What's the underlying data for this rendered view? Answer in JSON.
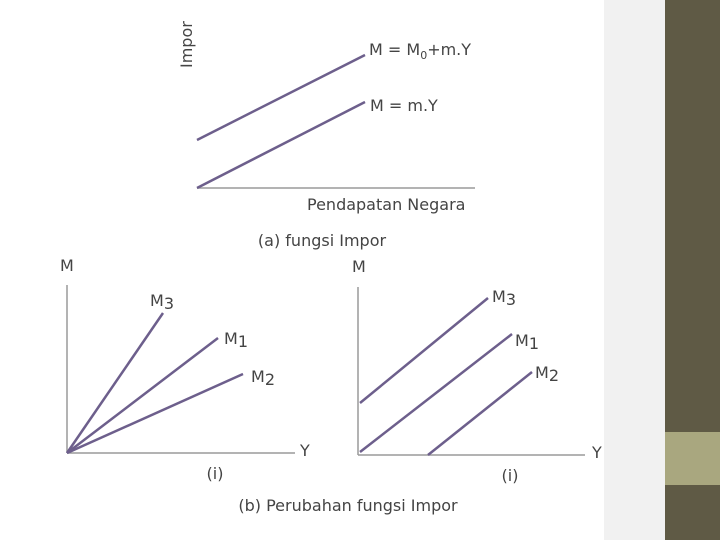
{
  "panel_a": {
    "y_axis_label": "Impor",
    "x_axis_label": "Pendapatan Negara",
    "caption": "(a) fungsi Impor",
    "lines": [
      {
        "label": {
          "base": "M = M",
          "sub": "0",
          "rest": "+m.Y"
        }
      },
      {
        "label": {
          "base": "M = m.Y"
        }
      }
    ]
  },
  "panel_b": {
    "caption": "(b) Perubahan fungsi Impor",
    "left": {
      "y_axis_label": "M",
      "x_axis_label": "Y",
      "caption": "(i)",
      "lines": [
        {
          "label": {
            "base": "M",
            "sub": "3"
          }
        },
        {
          "label": {
            "base": "M",
            "sub": "1"
          }
        },
        {
          "label": {
            "base": "M",
            "sub": "2"
          }
        }
      ]
    },
    "right": {
      "y_axis_label": "M",
      "x_axis_label": "Y",
      "caption": "(i)",
      "lines": [
        {
          "label": {
            "base": "M",
            "sub": "3"
          }
        },
        {
          "label": {
            "base": "M",
            "sub": "1"
          }
        },
        {
          "label": {
            "base": "M",
            "sub": "2"
          }
        }
      ]
    }
  }
}
